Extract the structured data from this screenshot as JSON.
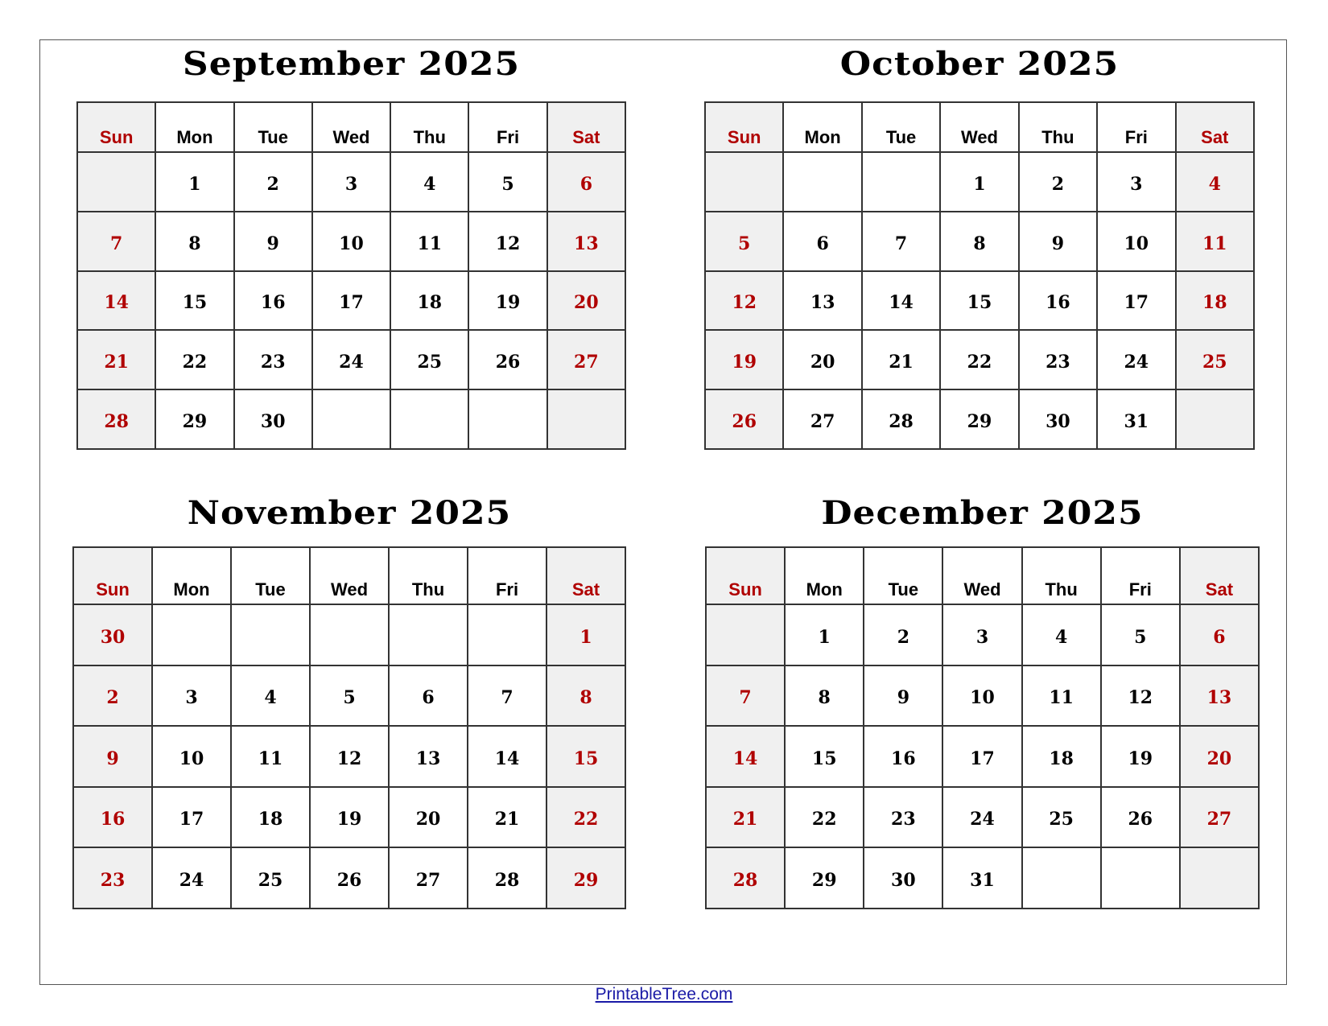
{
  "weekdays": [
    "Sun",
    "Mon",
    "Tue",
    "Wed",
    "Thu",
    "Fri",
    "Sat"
  ],
  "colors": {
    "weekend_text": "#b00000",
    "weekend_bg": "#f0f0f0",
    "link": "#1a1aa6"
  },
  "months": [
    {
      "title": "September 2025",
      "weeks": [
        [
          "",
          "1",
          "2",
          "3",
          "4",
          "5",
          "6"
        ],
        [
          "7",
          "8",
          "9",
          "10",
          "11",
          "12",
          "13"
        ],
        [
          "14",
          "15",
          "16",
          "17",
          "18",
          "19",
          "20"
        ],
        [
          "21",
          "22",
          "23",
          "24",
          "25",
          "26",
          "27"
        ],
        [
          "28",
          "29",
          "30",
          "",
          "",
          "",
          ""
        ]
      ]
    },
    {
      "title": "October 2025",
      "weeks": [
        [
          "",
          "",
          "",
          "1",
          "2",
          "3",
          "4"
        ],
        [
          "5",
          "6",
          "7",
          "8",
          "9",
          "10",
          "11"
        ],
        [
          "12",
          "13",
          "14",
          "15",
          "16",
          "17",
          "18"
        ],
        [
          "19",
          "20",
          "21",
          "22",
          "23",
          "24",
          "25"
        ],
        [
          "26",
          "27",
          "28",
          "29",
          "30",
          "31",
          ""
        ]
      ]
    },
    {
      "title": "November 2025",
      "weeks": [
        [
          "30",
          "",
          "",
          "",
          "",
          "",
          "1"
        ],
        [
          "2",
          "3",
          "4",
          "5",
          "6",
          "7",
          "8"
        ],
        [
          "9",
          "10",
          "11",
          "12",
          "13",
          "14",
          "15"
        ],
        [
          "16",
          "17",
          "18",
          "19",
          "20",
          "21",
          "22"
        ],
        [
          "23",
          "24",
          "25",
          "26",
          "27",
          "28",
          "29"
        ]
      ]
    },
    {
      "title": "December 2025",
      "weeks": [
        [
          "",
          "1",
          "2",
          "3",
          "4",
          "5",
          "6"
        ],
        [
          "7",
          "8",
          "9",
          "10",
          "11",
          "12",
          "13"
        ],
        [
          "14",
          "15",
          "16",
          "17",
          "18",
          "19",
          "20"
        ],
        [
          "21",
          "22",
          "23",
          "24",
          "25",
          "26",
          "27"
        ],
        [
          "28",
          "29",
          "30",
          "31",
          "",
          "",
          ""
        ]
      ]
    }
  ],
  "footer": {
    "link_text": "PrintableTree.com"
  }
}
